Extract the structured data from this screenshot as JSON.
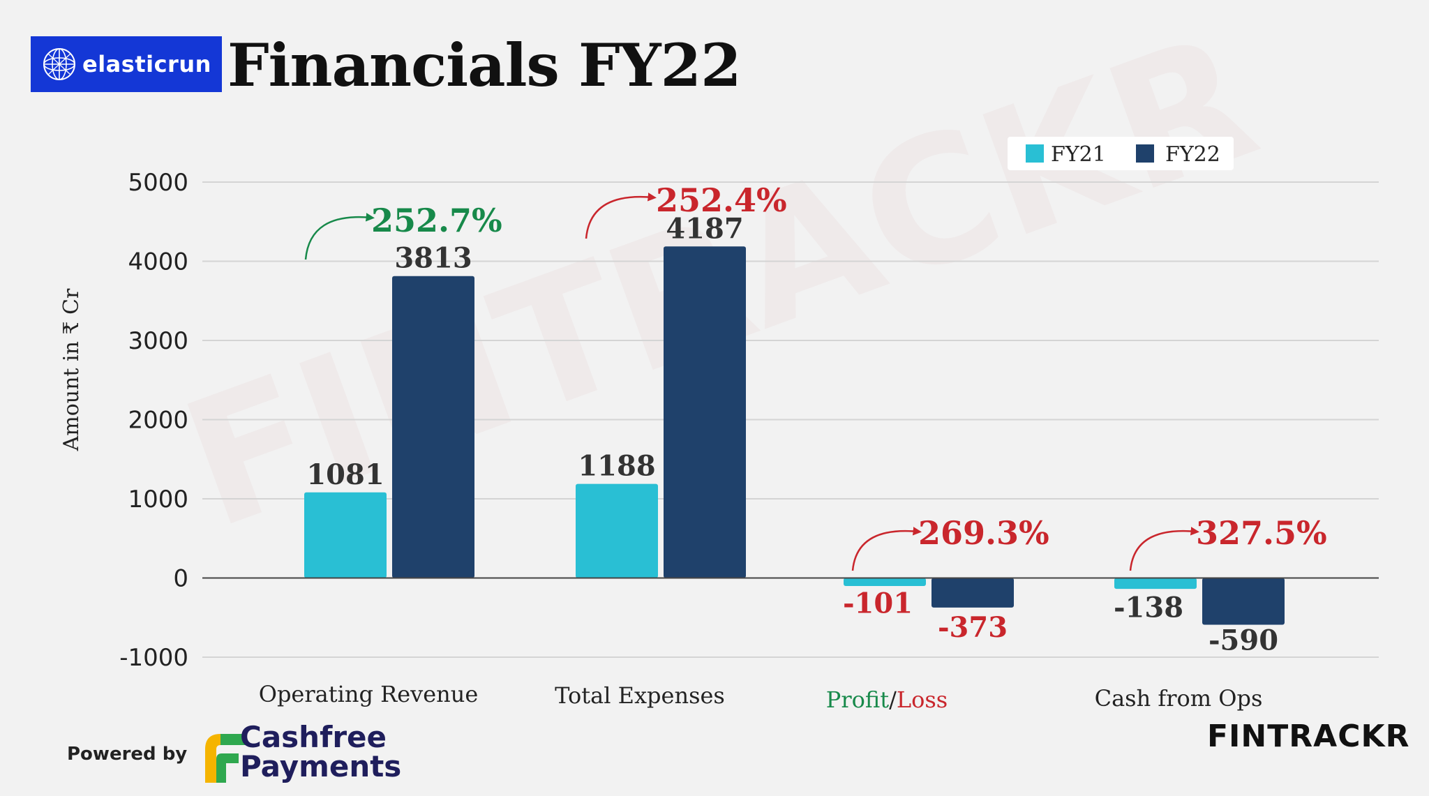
{
  "brand": {
    "name": "elasticrun"
  },
  "title": "Financials FY22",
  "watermark": "FINTRACKR",
  "colors": {
    "fy21": "#29bfd4",
    "fy22": "#1f416b",
    "green": "#17894a",
    "red": "#c9262c",
    "logo_bg": "#1437d6"
  },
  "chart_data": {
    "type": "bar",
    "ylabel": "Amount in ₹ Cr",
    "ylim": [
      -1000,
      5000
    ],
    "yticks": [
      "5000",
      "4000",
      "3000",
      "2000",
      "1000",
      "0",
      "-1000"
    ],
    "grid": true,
    "legend_position": "top-right",
    "categories": [
      "Operating Revenue",
      "Total Expenses",
      "Profit/Loss",
      "Cash from Ops"
    ],
    "category_parts": {
      "profit": "Profit",
      "slash": "/",
      "loss": "Loss"
    },
    "series": [
      {
        "name": "FY21",
        "values": [
          1081,
          1188,
          -101,
          -138
        ],
        "labels": [
          "1081",
          "1188",
          "-101",
          "-138"
        ]
      },
      {
        "name": "FY22",
        "values": [
          3813,
          4187,
          -373,
          -590
        ],
        "labels": [
          "3813",
          "4187",
          "-373",
          "-590"
        ]
      }
    ],
    "annotations": [
      {
        "text": "252.7%",
        "color": "green"
      },
      {
        "text": "252.4%",
        "color": "red"
      },
      {
        "text": "269.3%",
        "color": "red"
      },
      {
        "text": "327.5%",
        "color": "red"
      }
    ]
  },
  "footer": {
    "powered_by": "Powered by",
    "partner_line1": "Cashfree",
    "partner_line2": "Payments",
    "source": "FINTRACKR"
  }
}
